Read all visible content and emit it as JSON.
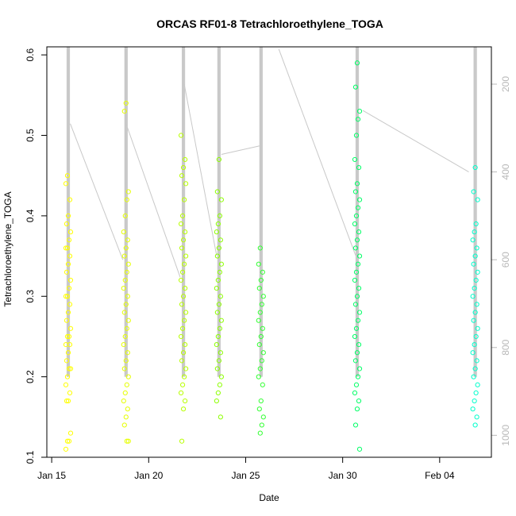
{
  "chart_data": {
    "type": "scatter",
    "title": "ORCAS RF01-8 Tetrachloroethylene_TOGA",
    "xlabel": "Date",
    "ylabel": "Tetrachloroethylene_TOGA",
    "x_range": [
      "2016-01-14T18:00",
      "2016-02-06T16:00"
    ],
    "ylim": [
      0.1,
      0.61
    ],
    "y2lim": [
      1050,
      115
    ],
    "x_ticks": [
      {
        "date": "2016-01-15",
        "label": "Jan 15"
      },
      {
        "date": "2016-01-20",
        "label": "Jan 20"
      },
      {
        "date": "2016-01-25",
        "label": "Jan 25"
      },
      {
        "date": "2016-01-30",
        "label": "Jan 30"
      },
      {
        "date": "2016-02-04",
        "label": "Feb 04"
      }
    ],
    "y_ticks": [
      0.1,
      0.2,
      0.3,
      0.4,
      0.5,
      0.6
    ],
    "y2_ticks": [
      200,
      400,
      600,
      800,
      1000
    ],
    "y2_label_note": "right axis: pressure (unlabeled)",
    "grid": false,
    "legend": "none",
    "flights": [
      {
        "center": "2016-01-15T20:30",
        "color": "#ffff00",
        "values": [
          0.11,
          0.12,
          0.12,
          0.13,
          0.17,
          0.17,
          0.18,
          0.19,
          0.2,
          0.21,
          0.21,
          0.22,
          0.23,
          0.24,
          0.24,
          0.25,
          0.25,
          0.26,
          0.27,
          0.28,
          0.29,
          0.3,
          0.3,
          0.31,
          0.32,
          0.33,
          0.34,
          0.35,
          0.36,
          0.36,
          0.37,
          0.38,
          0.39,
          0.4,
          0.42,
          0.44,
          0.45
        ]
      },
      {
        "center": "2016-01-18T20:00",
        "color": "#e6ff00",
        "values": [
          0.12,
          0.12,
          0.14,
          0.15,
          0.16,
          0.17,
          0.18,
          0.19,
          0.2,
          0.21,
          0.22,
          0.23,
          0.24,
          0.25,
          0.26,
          0.27,
          0.28,
          0.29,
          0.3,
          0.31,
          0.32,
          0.33,
          0.34,
          0.35,
          0.36,
          0.37,
          0.38,
          0.4,
          0.42,
          0.43,
          0.53,
          0.54
        ]
      },
      {
        "center": "2016-01-21T19:00",
        "color": "#b8ff00",
        "values": [
          0.12,
          0.16,
          0.17,
          0.18,
          0.19,
          0.2,
          0.21,
          0.22,
          0.23,
          0.24,
          0.25,
          0.26,
          0.27,
          0.28,
          0.29,
          0.3,
          0.31,
          0.32,
          0.33,
          0.34,
          0.35,
          0.36,
          0.37,
          0.38,
          0.39,
          0.4,
          0.42,
          0.44,
          0.45,
          0.46,
          0.47,
          0.5
        ]
      },
      {
        "center": "2016-01-23T15:00",
        "color": "#8cff00",
        "values": [
          0.15,
          0.17,
          0.18,
          0.19,
          0.2,
          0.21,
          0.22,
          0.23,
          0.24,
          0.25,
          0.26,
          0.27,
          0.28,
          0.29,
          0.3,
          0.31,
          0.32,
          0.33,
          0.34,
          0.35,
          0.36,
          0.37,
          0.38,
          0.39,
          0.4,
          0.42,
          0.43,
          0.47
        ]
      },
      {
        "center": "2016-01-25T19:00",
        "color": "#33ff33",
        "values": [
          0.13,
          0.14,
          0.15,
          0.16,
          0.17,
          0.19,
          0.2,
          0.21,
          0.22,
          0.23,
          0.24,
          0.25,
          0.26,
          0.27,
          0.28,
          0.29,
          0.3,
          0.31,
          0.32,
          0.33,
          0.34,
          0.36
        ]
      },
      {
        "center": "2016-01-30T18:00",
        "color": "#00ff66",
        "values": [
          0.11,
          0.14,
          0.16,
          0.17,
          0.18,
          0.19,
          0.2,
          0.21,
          0.22,
          0.23,
          0.24,
          0.25,
          0.26,
          0.27,
          0.28,
          0.29,
          0.3,
          0.31,
          0.32,
          0.33,
          0.34,
          0.35,
          0.36,
          0.37,
          0.38,
          0.39,
          0.4,
          0.41,
          0.42,
          0.43,
          0.44,
          0.46,
          0.47,
          0.5,
          0.52,
          0.53,
          0.56,
          0.59
        ]
      },
      {
        "center": "2016-02-05T20:00",
        "color": "#00ffcc",
        "values": [
          0.14,
          0.15,
          0.16,
          0.17,
          0.18,
          0.19,
          0.2,
          0.21,
          0.22,
          0.23,
          0.24,
          0.25,
          0.26,
          0.27,
          0.28,
          0.29,
          0.3,
          0.31,
          0.32,
          0.33,
          0.34,
          0.35,
          0.36,
          0.37,
          0.38,
          0.39,
          0.42,
          0.43,
          0.46
        ]
      }
    ],
    "pressure_trace": {
      "color": "#c8c8c8",
      "transit_points": [
        {
          "date": "2016-01-15T23:00",
          "p": 290
        },
        {
          "date": "2016-01-18T16:00",
          "p": 600
        },
        {
          "date": "2016-01-18T20:00",
          "p": 290
        },
        {
          "date": "2016-01-21T15:00",
          "p": 640
        },
        {
          "date": "2016-01-21T20:00",
          "p": 200
        },
        {
          "date": "2016-01-23T12:00",
          "p": 590
        },
        {
          "date": "2016-01-23T18:00",
          "p": 360
        },
        {
          "date": "2016-01-25T19:00",
          "p": 340
        },
        {
          "date": "2016-01-26T17:00",
          "p": 120
        },
        {
          "date": "2016-01-30T16:00",
          "p": 590
        },
        {
          "date": "2016-01-31T01:00",
          "p": 260
        },
        {
          "date": "2016-02-05T12:00",
          "p": 400
        }
      ]
    }
  }
}
